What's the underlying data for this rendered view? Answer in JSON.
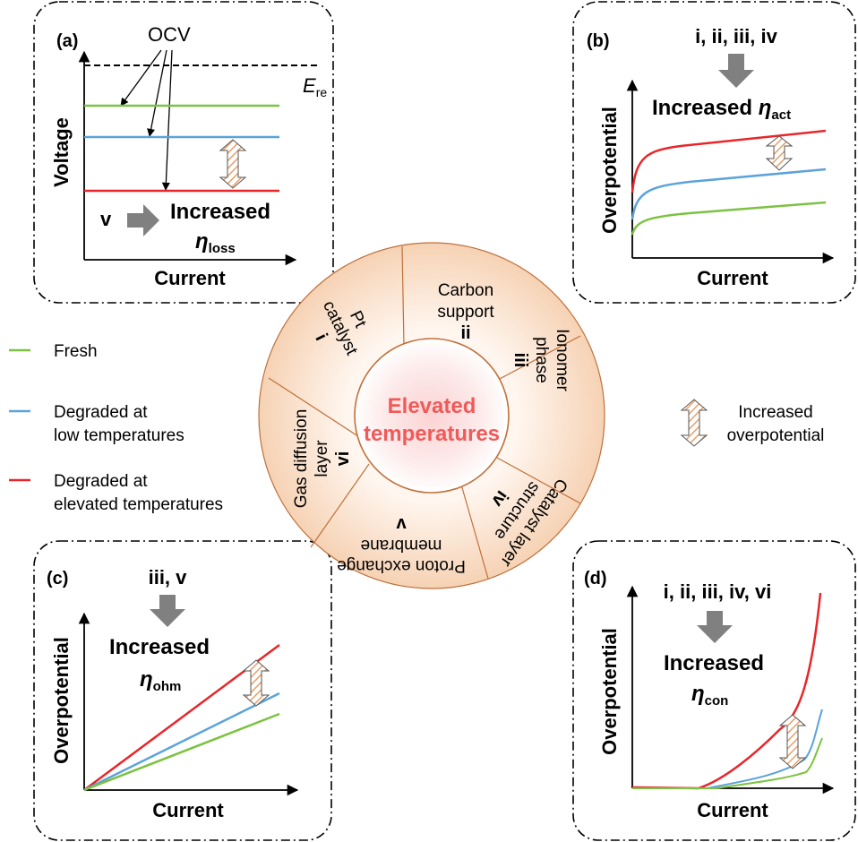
{
  "panel_a": {
    "label": "(a)",
    "ocv": "OCV",
    "e_letter": "E",
    "e_sub": "re",
    "ylabel": "Voltage",
    "xlabel": "Current",
    "cause": "v",
    "increased": "Increased",
    "eta": "η",
    "eta_sub": "loss"
  },
  "panel_b": {
    "label": "(b)",
    "causes": "i, ii, iii, iv",
    "increased": "Increased",
    "eta": "η",
    "eta_sub": "act",
    "ylabel": "Overpotential",
    "xlabel": "Current"
  },
  "panel_c": {
    "label": "(c)",
    "causes": "iii, v",
    "increased": "Increased",
    "eta": "η",
    "eta_sub": "ohm",
    "ylabel": "Overpotential",
    "xlabel": "Current"
  },
  "panel_d": {
    "label": "(d)",
    "causes": "i, ii, iii, iv, vi",
    "increased": "Increased",
    "eta": "η",
    "eta_sub": "con",
    "ylabel": "Overpotential",
    "xlabel": "Current"
  },
  "legend": {
    "fresh": "Fresh",
    "low_1": "Degraded at",
    "low_2": "low temperatures",
    "high_1": "Degraded at",
    "high_2": "elevated temperatures",
    "arrow_1": "Increased",
    "arrow_2": "overpotential"
  },
  "wheel": {
    "center_1": "Elevated",
    "center_2": "temperatures",
    "pt_1": "Pt",
    "pt_2": "catalyst",
    "pt_num": "i",
    "carbon_1": "Carbon",
    "carbon_2": "support",
    "carbon_num": "ii",
    "ionomer_1": "Ionomer",
    "ionomer_2": "phase",
    "ionomer_num": "iii",
    "cl_1": "Catalyst layer",
    "cl_2": "structure",
    "cl_num": "iv",
    "pem_1": "Proton exchange",
    "pem_2": "membrane",
    "pem_num": "v",
    "gdl_1": "Gas diffusion",
    "gdl_2": "layer",
    "gdl_num": "vi"
  },
  "colors": {
    "fresh": "#7cc242",
    "low": "#5ba3d9",
    "high": "#e8262a",
    "wheel_ring": "#c0703a",
    "center_text": "#f05a5a",
    "arrow_gray": "#808080",
    "arrow_hatch": "#e8a06a"
  }
}
